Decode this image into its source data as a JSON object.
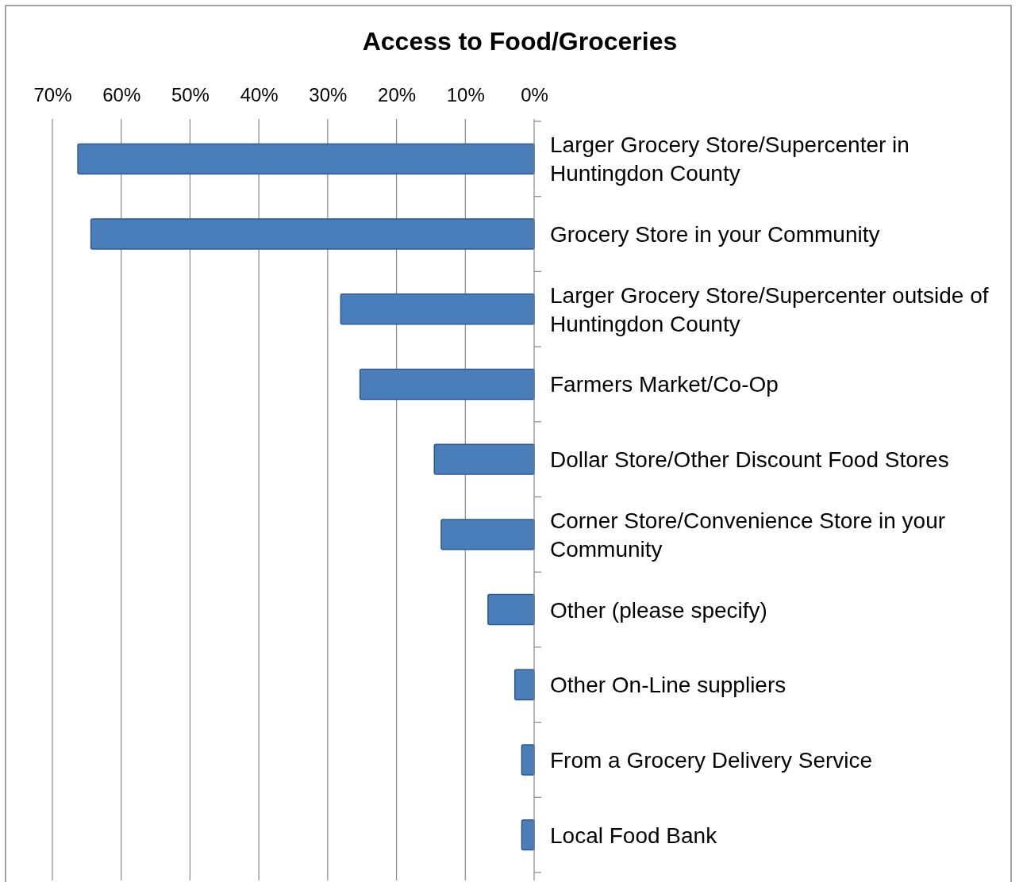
{
  "chart_data": {
    "type": "bar",
    "orientation": "horizontal",
    "title": "Access to Food/Groceries",
    "categories": [
      "Larger Grocery Store/Supercenter in Huntingdon County",
      "Grocery Store in your Community",
      "Larger Grocery Store/Supercenter outside of Huntingdon County",
      "Farmers Market/Co-Op",
      "Dollar Store/Other Discount Food Stores",
      "Corner Store/Convenience Store in your Community",
      "Other (please specify)",
      "Other On-Line suppliers",
      "From a Grocery Delivery Service",
      "Local Food Bank"
    ],
    "values": [
      66.3,
      64.4,
      28.1,
      25.3,
      14.5,
      13.5,
      6.7,
      2.8,
      1.8,
      1.8
    ],
    "color": "#4a7ebb",
    "xlim": [
      70,
      0
    ],
    "xticks": [
      {
        "value": 70,
        "label": "70%"
      },
      {
        "value": 60,
        "label": "60%"
      },
      {
        "value": 50,
        "label": "50%"
      },
      {
        "value": 40,
        "label": "40%"
      },
      {
        "value": 30,
        "label": "30%"
      },
      {
        "value": 20,
        "label": "20%"
      },
      {
        "value": 10,
        "label": "10%"
      },
      {
        "value": 0,
        "label": "0%"
      }
    ],
    "grid": "x"
  }
}
